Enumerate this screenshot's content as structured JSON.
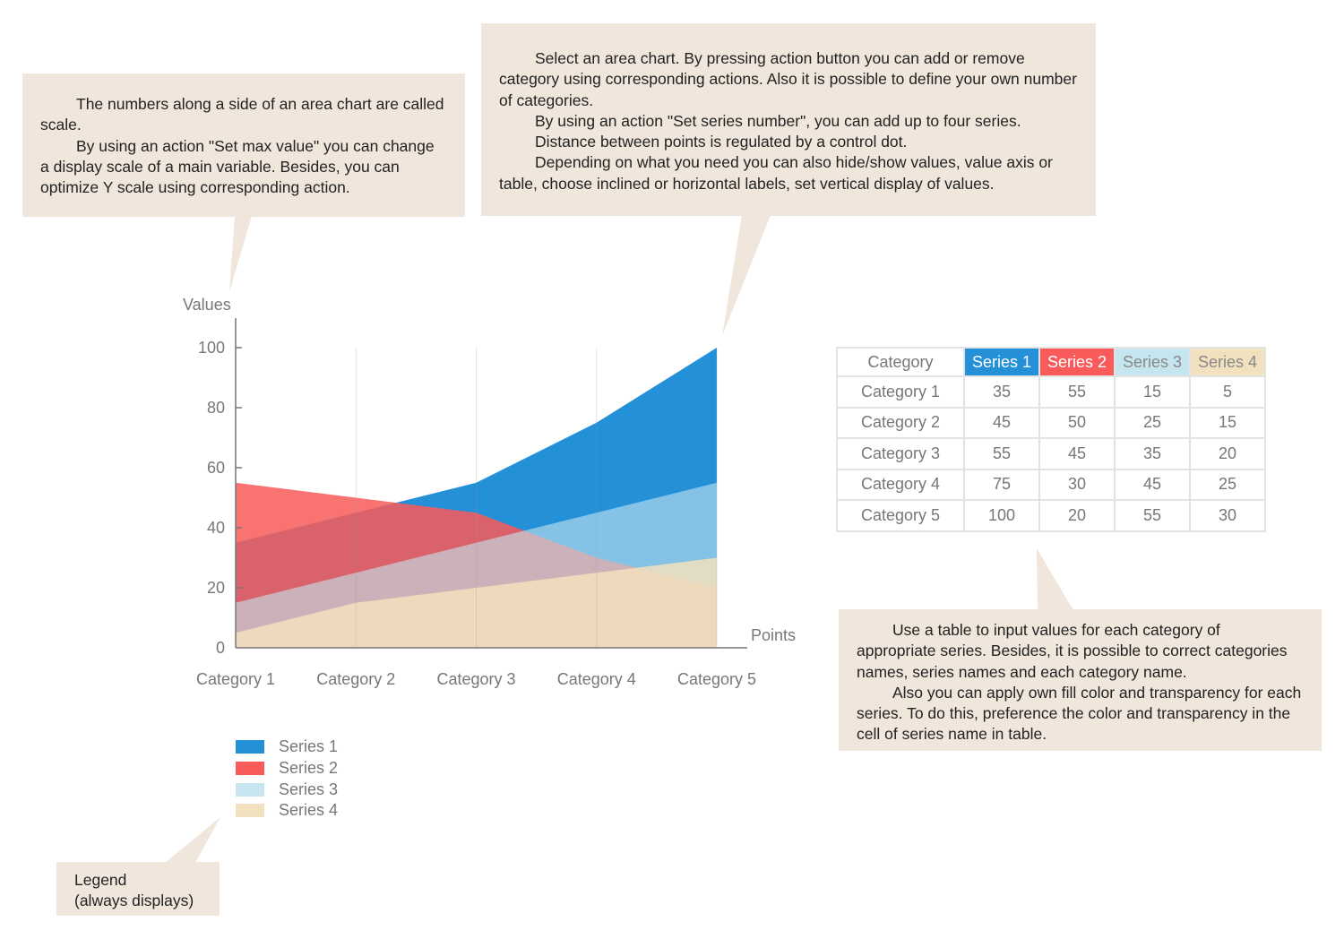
{
  "callouts": {
    "scale": [
      "The numbers along a side of an area chart are called scale.",
      "By using an action \"Set max value\" you can change a display scale of a main variable. Besides, you can optimize Y scale using corresponding action."
    ],
    "chart": [
      "Select an area chart. By pressing action button you can add or remove category using corresponding actions. Also it is possible to define your own number of categories.",
      "By using an action \"Set series number\", you can add up to four series.",
      "Distance between points is regulated by a control dot.",
      "Depending on what you need you can also hide/show values, value axis or table, choose inclined or horizontal labels, set vertical display of values."
    ],
    "table": [
      "Use a table to input values for each category of appropriate series. Besides, it is possible to correct categories names, series names and each category name.",
      "Also you can apply own fill color and transparency for each series. To do this, preference the color and transparency in the cell of series name in table."
    ],
    "legend": [
      "Legend",
      "(always displays)"
    ]
  },
  "colors": {
    "callout_bg": "#F0E6DC",
    "series": [
      "#2490D8",
      "#F95A5A",
      "#C5E6EE",
      "#F2E1BE"
    ]
  },
  "chart_data": {
    "type": "area",
    "ylabel": "Values",
    "xlabel": "Points",
    "ylim": [
      0,
      100
    ],
    "yticks": [
      "0",
      "20",
      "40",
      "60",
      "80",
      "100"
    ],
    "categories": [
      "Category 1",
      "Category 2",
      "Category 3",
      "Category 4",
      "Category 5"
    ],
    "series": [
      {
        "name": "Series 1",
        "values": [
          35,
          45,
          55,
          75,
          100
        ]
      },
      {
        "name": "Series 2",
        "values": [
          55,
          50,
          45,
          30,
          20
        ]
      },
      {
        "name": "Series 3",
        "values": [
          15,
          25,
          35,
          45,
          55
        ]
      },
      {
        "name": "Series 4",
        "values": [
          5,
          15,
          20,
          25,
          30
        ]
      }
    ],
    "legend_position": "bottom-left"
  },
  "table": {
    "header": "Category"
  }
}
